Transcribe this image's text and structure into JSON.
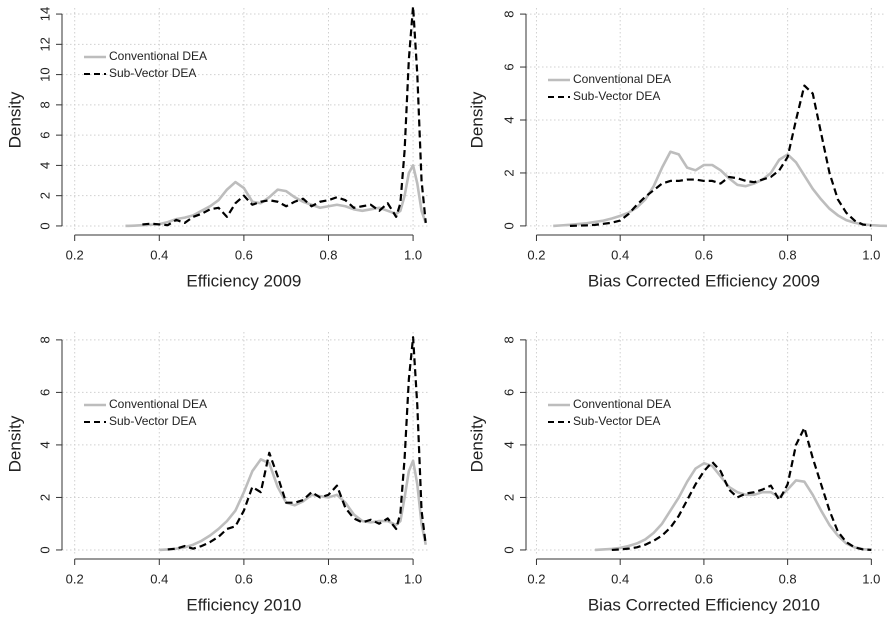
{
  "chart_data": [
    {
      "type": "line",
      "xlabel": "Efficiency 2009",
      "ylabel": "Density",
      "grid": true,
      "legend": "upper left",
      "xlim": [
        0.17,
        1.04
      ],
      "ylim": [
        -0.4,
        14.4
      ],
      "xticks": [
        0.2,
        0.4,
        0.6,
        0.8,
        {
          "value": 1,
          "label": "1.0"
        }
      ],
      "yticks": [
        0,
        2,
        4,
        6,
        8,
        10,
        12,
        14
      ],
      "x": [
        0.32,
        0.34,
        0.36,
        0.38,
        0.4,
        0.42,
        0.44,
        0.46,
        0.48,
        0.5,
        0.52,
        0.54,
        0.56,
        0.58,
        0.6,
        0.62,
        0.64,
        0.66,
        0.68,
        0.7,
        0.72,
        0.74,
        0.76,
        0.78,
        0.8,
        0.82,
        0.84,
        0.86,
        0.88,
        0.9,
        0.92,
        0.94,
        0.96,
        0.97,
        0.98,
        0.99,
        1.0,
        1.01,
        1.02,
        1.03
      ],
      "series": [
        {
          "name": "Conventional DEA",
          "color": "#bdbdbd",
          "linestyle": "solid",
          "values": [
            0.0,
            0.02,
            0.05,
            0.08,
            0.12,
            0.25,
            0.45,
            0.55,
            0.7,
            1.0,
            1.3,
            1.7,
            2.4,
            2.9,
            2.5,
            1.6,
            1.5,
            1.9,
            2.4,
            2.3,
            1.9,
            1.6,
            1.4,
            1.2,
            1.3,
            1.4,
            1.3,
            1.1,
            1.0,
            1.1,
            1.2,
            1.0,
            0.8,
            1.0,
            2.0,
            3.5,
            4.0,
            2.8,
            1.0,
            0.2
          ]
        },
        {
          "name": "Sub-Vector DEA",
          "color": "#000000",
          "linestyle": "dashed",
          "values": [
            null,
            null,
            0.1,
            0.15,
            0.1,
            0.05,
            0.4,
            0.2,
            0.6,
            0.8,
            1.1,
            1.2,
            0.6,
            1.5,
            2.0,
            1.4,
            1.6,
            1.7,
            1.6,
            1.3,
            1.6,
            1.8,
            1.3,
            1.6,
            1.7,
            1.9,
            1.7,
            1.2,
            1.3,
            1.4,
            1.0,
            1.5,
            0.6,
            1.5,
            5.0,
            11.0,
            14.5,
            10.0,
            3.0,
            0.2
          ]
        }
      ]
    },
    {
      "type": "line",
      "xlabel": "Bias Corrected Efficiency 2009",
      "ylabel": "Density",
      "grid": true,
      "legend": "upper left",
      "xlim": [
        0.175,
        1.035
      ],
      "ylim": [
        -0.23,
        8.23
      ],
      "xticks": [
        0.2,
        0.4,
        0.6,
        0.8,
        {
          "value": 1,
          "label": "1.0"
        }
      ],
      "yticks": [
        0,
        2,
        4,
        6,
        8
      ],
      "x": [
        0.24,
        0.26,
        0.28,
        0.3,
        0.32,
        0.34,
        0.36,
        0.38,
        0.4,
        0.42,
        0.44,
        0.46,
        0.48,
        0.5,
        0.52,
        0.54,
        0.56,
        0.58,
        0.6,
        0.62,
        0.64,
        0.66,
        0.68,
        0.7,
        0.72,
        0.74,
        0.76,
        0.78,
        0.8,
        0.82,
        0.84,
        0.86,
        0.88,
        0.9,
        0.92,
        0.94,
        0.96,
        0.98,
        1.0,
        1.02,
        1.04
      ],
      "series": [
        {
          "name": "Conventional DEA",
          "color": "#bdbdbd",
          "linestyle": "solid",
          "values": [
            0.0,
            0.02,
            0.04,
            0.07,
            0.1,
            0.15,
            0.2,
            0.28,
            0.38,
            0.5,
            0.7,
            1.0,
            1.5,
            2.2,
            2.8,
            2.7,
            2.2,
            2.1,
            2.3,
            2.3,
            2.1,
            1.8,
            1.55,
            1.5,
            1.6,
            1.75,
            2.0,
            2.5,
            2.7,
            2.4,
            1.9,
            1.4,
            1.0,
            0.65,
            0.4,
            0.22,
            0.12,
            0.06,
            0.03,
            0.01,
            0.0
          ]
        },
        {
          "name": "Sub-Vector DEA",
          "color": "#000000",
          "linestyle": "dashed",
          "values": [
            null,
            null,
            0.0,
            0.01,
            0.02,
            0.04,
            0.08,
            0.12,
            0.2,
            0.45,
            0.8,
            1.1,
            1.35,
            1.6,
            1.7,
            1.7,
            1.75,
            1.75,
            1.7,
            1.7,
            1.6,
            1.85,
            1.8,
            1.7,
            1.65,
            1.75,
            1.85,
            2.1,
            2.6,
            4.0,
            5.3,
            5.0,
            3.5,
            2.0,
            1.0,
            0.5,
            0.2,
            0.05,
            0.01,
            null,
            null
          ]
        }
      ]
    },
    {
      "type": "line",
      "xlabel": "Efficiency 2010",
      "ylabel": "Density",
      "grid": true,
      "legend": "upper left",
      "xlim": [
        0.17,
        1.04
      ],
      "ylim": [
        -0.23,
        8.3
      ],
      "xticks": [
        0.2,
        0.4,
        0.6,
        0.8,
        {
          "value": 1,
          "label": "1.0"
        }
      ],
      "yticks": [
        0,
        2,
        4,
        6,
        8
      ],
      "x": [
        0.4,
        0.42,
        0.44,
        0.46,
        0.48,
        0.5,
        0.52,
        0.54,
        0.56,
        0.58,
        0.6,
        0.62,
        0.64,
        0.66,
        0.68,
        0.7,
        0.72,
        0.74,
        0.76,
        0.78,
        0.8,
        0.82,
        0.84,
        0.86,
        0.88,
        0.9,
        0.92,
        0.94,
        0.96,
        0.97,
        0.98,
        0.99,
        1.0,
        1.01,
        1.02,
        1.03
      ],
      "series": [
        {
          "name": "Conventional DEA",
          "color": "#bdbdbd",
          "linestyle": "solid",
          "values": [
            0.0,
            0.02,
            0.05,
            0.1,
            0.2,
            0.35,
            0.55,
            0.8,
            1.1,
            1.5,
            2.2,
            3.0,
            3.45,
            3.3,
            2.4,
            1.8,
            1.7,
            1.85,
            2.1,
            2.05,
            2.0,
            2.1,
            1.8,
            1.35,
            1.1,
            1.05,
            1.1,
            1.1,
            0.95,
            1.1,
            2.0,
            3.0,
            3.4,
            2.5,
            1.0,
            0.2
          ]
        },
        {
          "name": "Sub-Vector DEA",
          "color": "#000000",
          "linestyle": "dashed",
          "values": [
            null,
            0.02,
            0.05,
            0.15,
            0.05,
            0.15,
            0.3,
            0.5,
            0.8,
            0.9,
            1.5,
            2.4,
            2.2,
            3.7,
            2.8,
            1.8,
            1.8,
            1.9,
            2.2,
            2.0,
            2.1,
            2.45,
            1.6,
            1.2,
            1.05,
            1.15,
            1.0,
            1.2,
            0.8,
            1.4,
            3.5,
            6.5,
            8.1,
            5.5,
            1.5,
            0.2
          ]
        }
      ]
    },
    {
      "type": "line",
      "xlabel": "Bias Corrected Efficiency 2010",
      "ylabel": "Density",
      "grid": true,
      "legend": "upper left",
      "xlim": [
        0.175,
        1.035
      ],
      "ylim": [
        -0.23,
        8.3
      ],
      "xticks": [
        0.2,
        0.4,
        0.6,
        0.8,
        {
          "value": 1,
          "label": "1.0"
        }
      ],
      "yticks": [
        0,
        2,
        4,
        6,
        8
      ],
      "x": [
        0.34,
        0.36,
        0.38,
        0.4,
        0.42,
        0.44,
        0.46,
        0.48,
        0.5,
        0.52,
        0.54,
        0.56,
        0.58,
        0.6,
        0.62,
        0.64,
        0.66,
        0.68,
        0.7,
        0.72,
        0.74,
        0.76,
        0.78,
        0.8,
        0.82,
        0.84,
        0.86,
        0.88,
        0.9,
        0.92,
        0.94,
        0.96,
        0.98,
        1.0
      ],
      "series": [
        {
          "name": "Conventional DEA",
          "color": "#bdbdbd",
          "linestyle": "solid",
          "values": [
            0.0,
            0.02,
            0.04,
            0.08,
            0.15,
            0.25,
            0.4,
            0.65,
            1.0,
            1.5,
            2.0,
            2.6,
            3.1,
            3.3,
            3.2,
            2.8,
            2.4,
            2.2,
            2.1,
            2.1,
            2.2,
            2.2,
            2.0,
            2.3,
            2.65,
            2.6,
            2.1,
            1.5,
            0.95,
            0.55,
            0.25,
            0.1,
            0.03,
            0.01
          ]
        },
        {
          "name": "Sub-Vector DEA",
          "color": "#000000",
          "linestyle": "dashed",
          "values": [
            null,
            null,
            0.0,
            0.02,
            0.05,
            0.1,
            0.2,
            0.35,
            0.55,
            0.85,
            1.3,
            1.9,
            2.5,
            3.0,
            3.35,
            3.0,
            2.3,
            2.0,
            2.15,
            2.2,
            2.3,
            2.45,
            1.9,
            2.5,
            4.0,
            4.65,
            3.5,
            2.5,
            1.5,
            0.7,
            0.3,
            0.1,
            0.02,
            0.0
          ]
        }
      ]
    }
  ]
}
